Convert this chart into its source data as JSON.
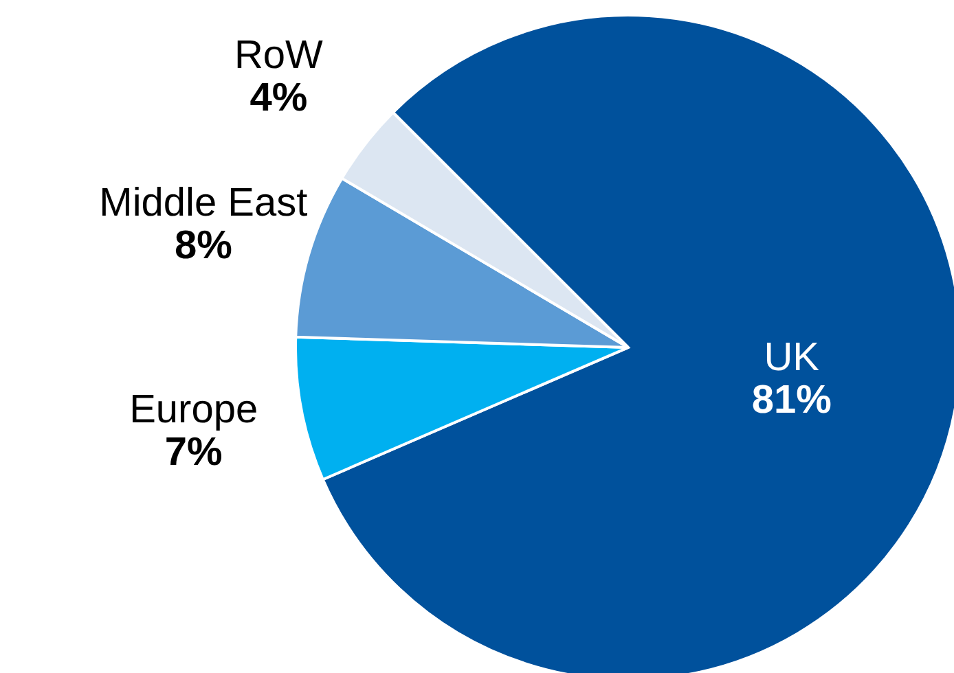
{
  "chart_data": {
    "type": "pie",
    "categories": [
      "UK",
      "Europe",
      "Middle East",
      "RoW"
    ],
    "values": [
      81,
      7,
      8,
      4
    ],
    "value_labels": [
      "81%",
      "7%",
      "8%",
      "4%"
    ],
    "colors": [
      "#00519c",
      "#00b0f0",
      "#5b9bd5",
      "#dce6f2"
    ]
  }
}
